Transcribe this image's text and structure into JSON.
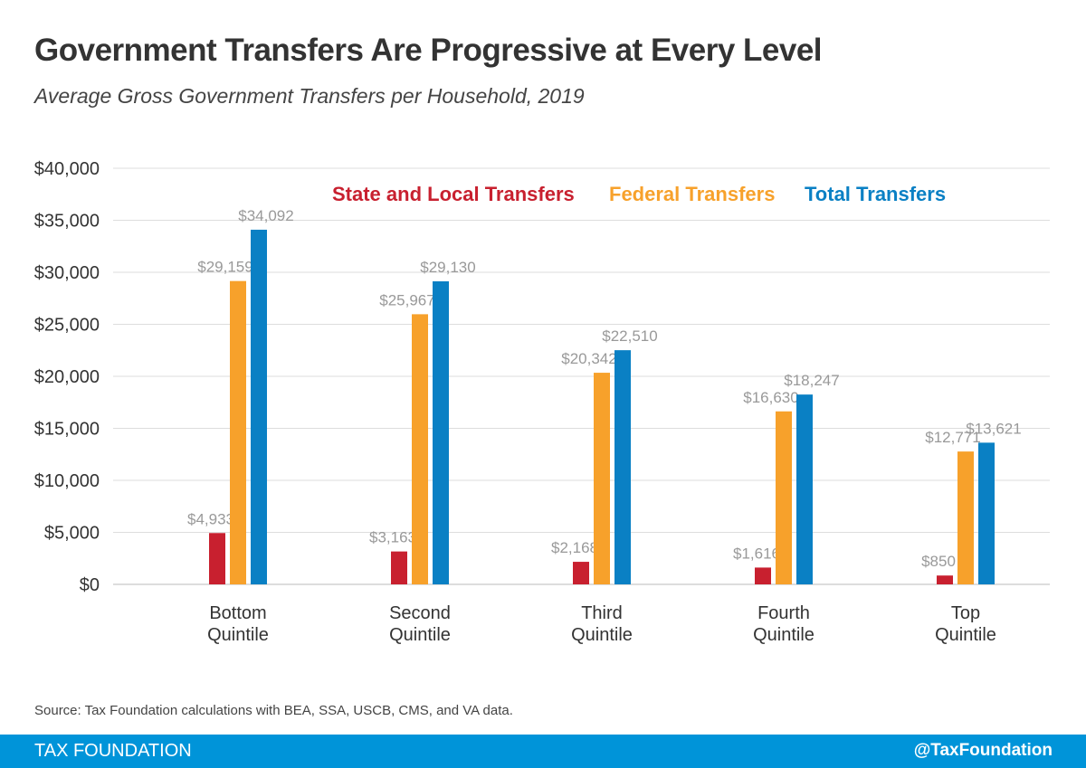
{
  "header": {
    "title": "Government Transfers Are Progressive at Every Level",
    "subtitle": "Average Gross Government Transfers per Household, 2019"
  },
  "chart_data": {
    "type": "bar",
    "categories": [
      [
        "Bottom",
        "Quintile"
      ],
      [
        "Second",
        "Quintile"
      ],
      [
        "Third",
        "Quintile"
      ],
      [
        "Fourth",
        "Quintile"
      ],
      [
        "Top",
        "Quintile"
      ]
    ],
    "series": [
      {
        "name": "State and Local Transfers",
        "color": "#c8202f",
        "values": [
          4933,
          3163,
          2168,
          1616,
          850
        ],
        "labels": [
          "$4,933",
          "$3,163",
          "$2,168",
          "$1,616",
          "$850"
        ]
      },
      {
        "name": "Federal Transfers",
        "color": "#f7a12b",
        "values": [
          29159,
          25967,
          20342,
          16630,
          12771
        ],
        "labels": [
          "$29,159",
          "$25,967",
          "$20,342",
          "$16,630",
          "$12,771"
        ]
      },
      {
        "name": "Total Transfers",
        "color": "#0a80c4",
        "values": [
          34092,
          29130,
          22510,
          18247,
          13621
        ],
        "labels": [
          "$34,092",
          "$29,130",
          "$22,510",
          "$18,247",
          "$13,621"
        ]
      }
    ],
    "yticks": [
      0,
      5000,
      10000,
      15000,
      20000,
      25000,
      30000,
      35000,
      40000
    ],
    "ytick_labels": [
      "$0",
      "$5,000",
      "$10,000",
      "$15,000",
      "$20,000",
      "$25,000",
      "$30,000",
      "$35,000",
      "$40,000"
    ],
    "ylim": [
      0,
      40000
    ],
    "grid": true,
    "legend_placement": "top"
  },
  "footer": {
    "source": "Source: Tax Foundation calculations with BEA, SSA, USCB, CMS, and VA data.",
    "brand": "TAX FOUNDATION",
    "handle": "@TaxFoundation",
    "color": "#0094d9"
  }
}
